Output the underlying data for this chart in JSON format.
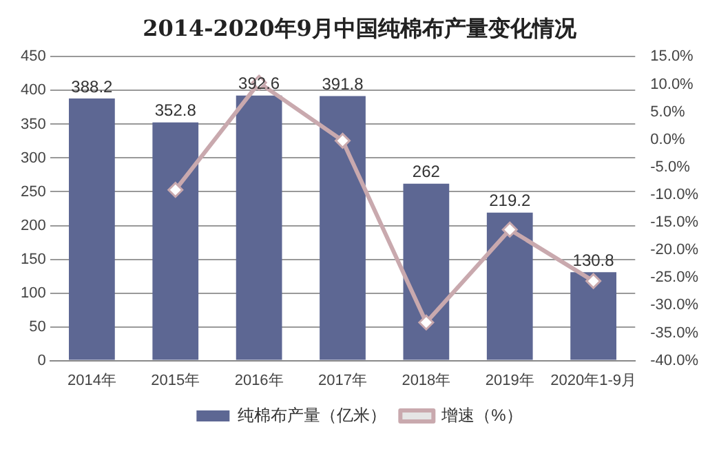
{
  "chart_data": {
    "type": "bar",
    "title": "2014-2020年9月中国纯棉布产量变化情况",
    "categories": [
      "2014年",
      "2015年",
      "2016年",
      "2017年",
      "2018年",
      "2019年",
      "2020年1-9月"
    ],
    "series": [
      {
        "name": "纯棉布产量（亿米）",
        "color": "#5d6793",
        "values": [
          388.2,
          352.8,
          392.6,
          391.8,
          262,
          219.2,
          130.8
        ],
        "value_labels": [
          "388.2",
          "352.8",
          "392.6",
          "391.8",
          "262",
          "219.2",
          "130.8"
        ]
      },
      {
        "name": "增速（%）",
        "type": "line",
        "axis": "y2",
        "color": "#c9a9ae",
        "marker": "diamond",
        "values": [
          null,
          -9.1,
          10.3,
          -0.2,
          -33.1,
          -16.3,
          -25.6
        ]
      }
    ],
    "ylim": [
      0,
      450
    ],
    "yticks": [
      0,
      50,
      100,
      150,
      200,
      250,
      300,
      350,
      400,
      450
    ],
    "y2lim": [
      -40,
      15
    ],
    "y2ticks": [
      {
        "value": -40,
        "label": "-40.0%"
      },
      {
        "value": -35,
        "label": "-35.0%"
      },
      {
        "value": -30,
        "label": "-30.0%"
      },
      {
        "value": -25,
        "label": "-25.0%"
      },
      {
        "value": -20,
        "label": "-20.0%"
      },
      {
        "value": -15,
        "label": "-15.0%"
      },
      {
        "value": -10,
        "label": "-10.0%"
      },
      {
        "value": -5,
        "label": "-5.0%"
      },
      {
        "value": 0,
        "label": "0.0%"
      },
      {
        "value": 5,
        "label": "5.0%"
      },
      {
        "value": 10,
        "label": "10.0%"
      },
      {
        "value": 15,
        "label": "15.0%"
      }
    ],
    "grid": "y",
    "legend": "bottom"
  }
}
